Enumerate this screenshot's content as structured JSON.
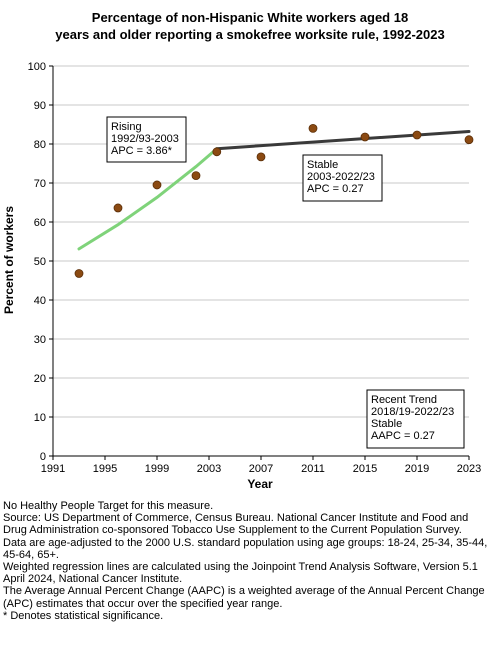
{
  "chart_data": {
    "type": "scatter",
    "title_lines": [
      "Percentage of non-Hispanic White workers aged 18",
      "years and older reporting a smokefree worksite rule, 1992-2023"
    ],
    "xlabel": "Year",
    "ylabel": "Percent of workers",
    "xlim": [
      1991,
      2023
    ],
    "ylim": [
      0,
      100
    ],
    "x_ticks": [
      1991,
      1995,
      1999,
      2003,
      2007,
      2011,
      2015,
      2019,
      2023
    ],
    "y_ticks": [
      0,
      10,
      20,
      30,
      40,
      50,
      60,
      70,
      80,
      90,
      100
    ],
    "grid": true,
    "points": [
      {
        "x": 1993,
        "y": 46.8
      },
      {
        "x": 1996,
        "y": 63.6
      },
      {
        "x": 1999,
        "y": 69.5
      },
      {
        "x": 2002,
        "y": 71.9
      },
      {
        "x": 2003.6,
        "y": 78.0
      },
      {
        "x": 2007,
        "y": 76.7
      },
      {
        "x": 2011,
        "y": 84.0
      },
      {
        "x": 2015,
        "y": 81.8
      },
      {
        "x": 2019,
        "y": 82.3
      },
      {
        "x": 2023,
        "y": 81.1
      }
    ],
    "trend_segments": [
      {
        "color": "#7fd37a",
        "points": [
          [
            1993,
            53.1
          ],
          [
            1996,
            59.3
          ],
          [
            1999,
            66.3
          ],
          [
            2002,
            74.2
          ],
          [
            2003.6,
            78.8
          ]
        ]
      },
      {
        "color": "#3a3a3a",
        "points": [
          [
            2003.6,
            78.8
          ],
          [
            2023,
            83.2
          ]
        ]
      }
    ],
    "annotations": [
      {
        "lines": [
          "Rising",
          "1992/93-2003",
          "APC =  3.86*"
        ]
      },
      {
        "lines": [
          "Stable",
          "2003-2022/23",
          "APC =  0.27"
        ]
      },
      {
        "lines": [
          "Recent Trend",
          "2018/19-2022/23",
          "Stable",
          "AAPC =  0.27"
        ]
      }
    ],
    "colors": {
      "marker_fill": "#8b4a12",
      "marker_stroke": "#5a2e08",
      "grid": "#c8c8c8",
      "plot_bg": "#ffffff"
    }
  },
  "notes": [
    "No Healthy People Target for this measure.",
    "Source: US Department of Commerce, Census Bureau. National Cancer Institute and Food and Drug Administration co-sponsored Tobacco Use Supplement to the Current Population Survey.",
    "Data are age-adjusted to the 2000 U.S. standard population using age groups: 18-24, 25-34, 35-44, 45-64, 65+.",
    "Weighted regression lines are calculated using the Joinpoint Trend Analysis Software, Version 5.1 April 2024, National Cancer Institute.",
    "The Average Annual Percent Change (AAPC) is a weighted average of the Annual Percent Change (APC) estimates that occur over the specified year range.",
    "* Denotes statistical significance."
  ]
}
